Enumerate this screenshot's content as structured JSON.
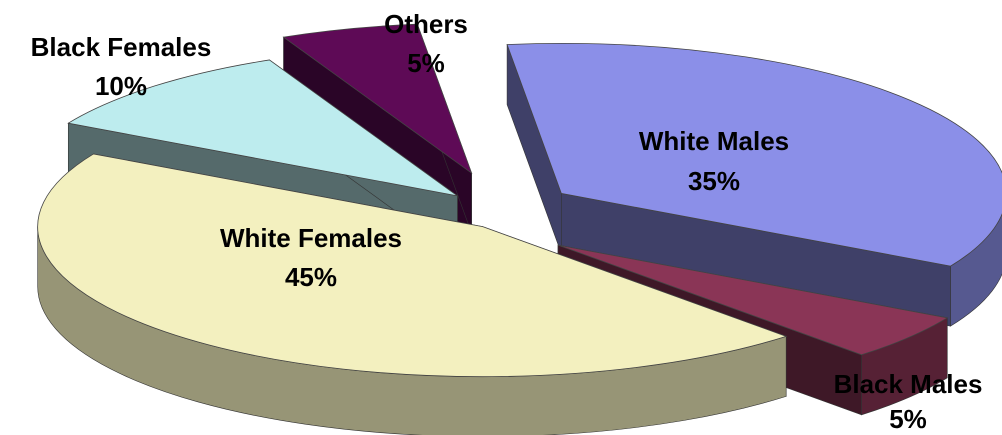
{
  "chart_data": {
    "type": "pie",
    "style": "3d-exploded",
    "slices": [
      {
        "key": "white-males",
        "label": "White Males",
        "value": 35,
        "value_text": "35%",
        "color": "#8b8fe8"
      },
      {
        "key": "black-males",
        "label": "Black Males",
        "value": 5,
        "value_text": "5%",
        "color": "#8a3556"
      },
      {
        "key": "white-females",
        "label": "White Females",
        "value": 45,
        "value_text": "45%",
        "color": "#f3f0bf"
      },
      {
        "key": "black-females",
        "label": "Black Females",
        "value": 10,
        "value_text": "10%",
        "color": "#bdecee"
      },
      {
        "key": "others",
        "label": "Others",
        "value": 5,
        "value_text": "5%",
        "color": "#5e0a56"
      }
    ]
  }
}
